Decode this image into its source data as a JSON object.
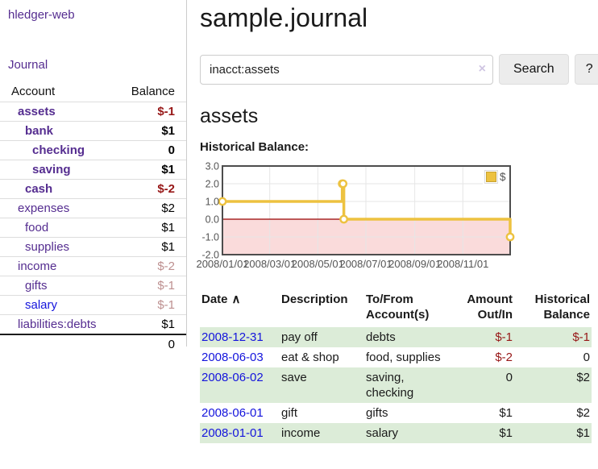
{
  "colors": {
    "link-visited": "#552d90",
    "link-unvisited": "#1414dc",
    "negative": "#971717",
    "negative-soft": "#bd8f8f",
    "row-green": "#dcecd8",
    "row-border": "#dddddd",
    "divider": "#cccccc",
    "input-border": "#cccccc",
    "button-bg": "#ececec",
    "clear-icon": "#cfc5e2",
    "tick-text": "#545454"
  },
  "sidebar": {
    "app_title": "hledger-web",
    "journal_link": "Journal",
    "accounts_table": {
      "headers": {
        "account": "Account",
        "balance": "Balance"
      },
      "rows": [
        {
          "name": "assets",
          "depth": 1,
          "bold": true,
          "balance": "$-1"
        },
        {
          "name": "bank",
          "depth": 2,
          "bold": true,
          "balance": "$1"
        },
        {
          "name": "checking",
          "depth": 3,
          "bold": true,
          "balance": "0"
        },
        {
          "name": "saving",
          "depth": 3,
          "bold": true,
          "balance": "$1"
        },
        {
          "name": "cash",
          "depth": 2,
          "bold": true,
          "balance": "$-2"
        },
        {
          "name": "expenses",
          "depth": 1,
          "bold": false,
          "balance": "$2"
        },
        {
          "name": "food",
          "depth": 2,
          "bold": false,
          "balance": "$1"
        },
        {
          "name": "supplies",
          "depth": 2,
          "bold": false,
          "balance": "$1"
        },
        {
          "name": "income",
          "depth": 1,
          "bold": false,
          "balance": "$-2"
        },
        {
          "name": "gifts",
          "depth": 2,
          "bold": false,
          "balance": "$-1"
        },
        {
          "name": "salary",
          "depth": 2,
          "bold": false,
          "balance": "$-1",
          "unvisited": true
        },
        {
          "name": "liabilities:debts",
          "depth": 1,
          "bold": false,
          "balance": "$1"
        }
      ],
      "total": "0"
    }
  },
  "header": {
    "title": "sample.journal"
  },
  "search": {
    "value": "inacct:assets",
    "clear_icon": "×",
    "button_label": "Search",
    "help_label": "?"
  },
  "main": {
    "account_heading": "assets",
    "chart_label": "Historical Balance:"
  },
  "chart_data": {
    "type": "line",
    "title": "Historical Balance:",
    "step": true,
    "series": [
      {
        "name": "$",
        "color": "#EDC240",
        "points": [
          {
            "x": "2008-01-01",
            "y": 1
          },
          {
            "x": "2008-06-01",
            "y": 2
          },
          {
            "x": "2008-06-02",
            "y": 2
          },
          {
            "x": "2008-06-03",
            "y": 0
          },
          {
            "x": "2008-12-31",
            "y": -1
          }
        ]
      }
    ],
    "x_ticks": [
      "2008/01/01",
      "2008/03/01",
      "2008/05/01",
      "2008/07/01",
      "2008/09/01",
      "2008/11/01"
    ],
    "y_ticks": [
      3.0,
      2.0,
      1.0,
      0.0,
      -1.0,
      -2.0
    ],
    "ylim": [
      -2,
      3
    ],
    "x_range": [
      "2008-01-01",
      "2008-12-31"
    ],
    "grid": true,
    "legend_position": "top-right",
    "below_zero_fill": "#fadbdb",
    "zero_line_color": "#990000",
    "plot_border_color": "#4d4d4d",
    "grid_color": "#e6e6e6"
  },
  "register": {
    "headers": {
      "date": "Date",
      "sort_indicator": "∧",
      "description": "Description",
      "accounts": "To/From Account(s)",
      "amount": "Amount Out/In",
      "balance": "Historical Balance"
    },
    "rows": [
      {
        "date": "2008-12-31",
        "description": "pay off",
        "accounts": "debts",
        "amount": "$-1",
        "balance": "$-1"
      },
      {
        "date": "2008-06-03",
        "description": "eat & shop",
        "accounts": "food, supplies",
        "amount": "$-2",
        "balance": "0"
      },
      {
        "date": "2008-06-02",
        "description": "save",
        "accounts": "saving, checking",
        "amount": "0",
        "balance": "$2"
      },
      {
        "date": "2008-06-01",
        "description": "gift",
        "accounts": "gifts",
        "amount": "$1",
        "balance": "$2"
      },
      {
        "date": "2008-01-01",
        "description": "income",
        "accounts": "salary",
        "amount": "$1",
        "balance": "$1"
      }
    ]
  }
}
